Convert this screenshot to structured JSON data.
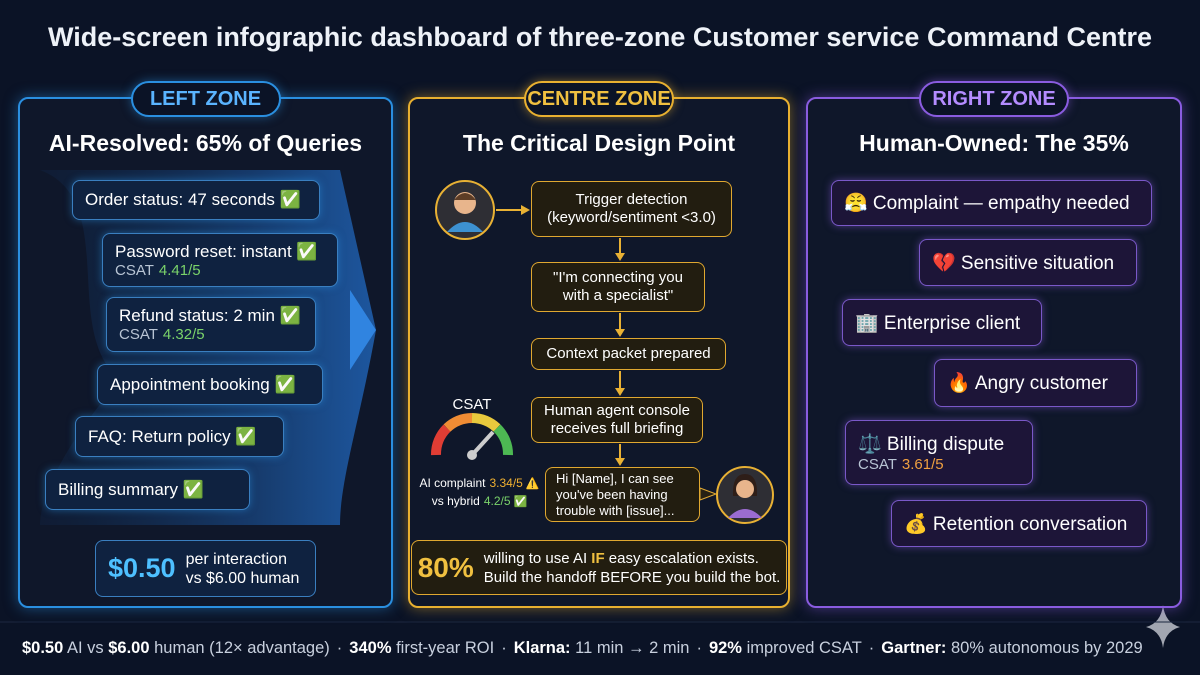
{
  "title": "Wide-screen infographic dashboard of three-zone Customer service Command Centre",
  "left_zone": {
    "label": "LEFT ZONE",
    "heading": "AI-Resolved: 65% of Queries",
    "items": [
      {
        "text": "Order status: 47 seconds ✅"
      },
      {
        "text": "Password reset: instant ✅",
        "csat_label": "CSAT",
        "csat": "4.41/5"
      },
      {
        "text": "Refund status: 2 min ✅",
        "csat_label": "CSAT",
        "csat": "4.32/5"
      },
      {
        "text": "Appointment booking ✅"
      },
      {
        "text": "FAQ: Return policy ✅"
      },
      {
        "text": "Billing summary ✅"
      }
    ],
    "cost": {
      "value": "$0.50",
      "line_1": "per interaction",
      "line_2": "vs $6.00 human"
    }
  },
  "centre_zone": {
    "label": "CENTRE ZONE",
    "heading": "The Critical Design Point",
    "steps": [
      [
        "Trigger detection",
        "(keyword/sentiment <3.0)"
      ],
      [
        "\"I'm connecting you",
        "with a specialist\""
      ],
      [
        "Context packet prepared"
      ],
      [
        "Human agent console",
        "receives full briefing"
      ]
    ],
    "bubble": [
      "Hi [Name], I can see",
      "you've been having",
      "trouble with [issue]..."
    ],
    "gauge_label": "CSAT",
    "comparison": [
      {
        "label": "AI complaint",
        "value": "3.34/5",
        "icon": "⚠️"
      },
      {
        "label": "vs hybrid",
        "value": "4.2/5",
        "icon": "✅"
      }
    ],
    "stat": {
      "value": "80%",
      "line_1": [
        {
          "text": "willing to use AI "
        },
        {
          "text": "IF",
          "highlight": true
        },
        {
          "text": " easy escalation exists."
        }
      ],
      "line_2": "Build the handoff BEFORE you build the bot."
    }
  },
  "right_zone": {
    "label": "RIGHT ZONE",
    "heading": "Human-Owned: The 35%",
    "items": [
      {
        "text": "😤 Complaint — empathy needed"
      },
      {
        "text": "💔 Sensitive situation"
      },
      {
        "text": "🏢 Enterprise client"
      },
      {
        "text": "🔥 Angry customer"
      },
      {
        "text": "⚖️ Billing dispute",
        "csat_label": "CSAT",
        "csat": "3.61/5"
      },
      {
        "text": "💰 Retention conversation"
      }
    ]
  },
  "footer": {
    "separator": "·",
    "items": [
      [
        {
          "text": "$0.50",
          "bold": true
        },
        {
          "text": " AI vs "
        },
        {
          "text": "$6.00",
          "bold": true
        },
        {
          "text": " human (12× advantage)"
        }
      ],
      [
        {
          "text": "340%",
          "bold": true
        },
        {
          "text": " first-year ROI"
        }
      ],
      [
        {
          "text": "Klarna:",
          "bold": true
        },
        {
          "text": " 11 min → 2 min"
        }
      ],
      [
        {
          "text": "92%",
          "bold": true
        },
        {
          "text": " improved CSAT"
        }
      ],
      [
        {
          "text": "Gartner:",
          "bold": true
        },
        {
          "text": " 80% autonomous by 2029"
        }
      ]
    ]
  }
}
